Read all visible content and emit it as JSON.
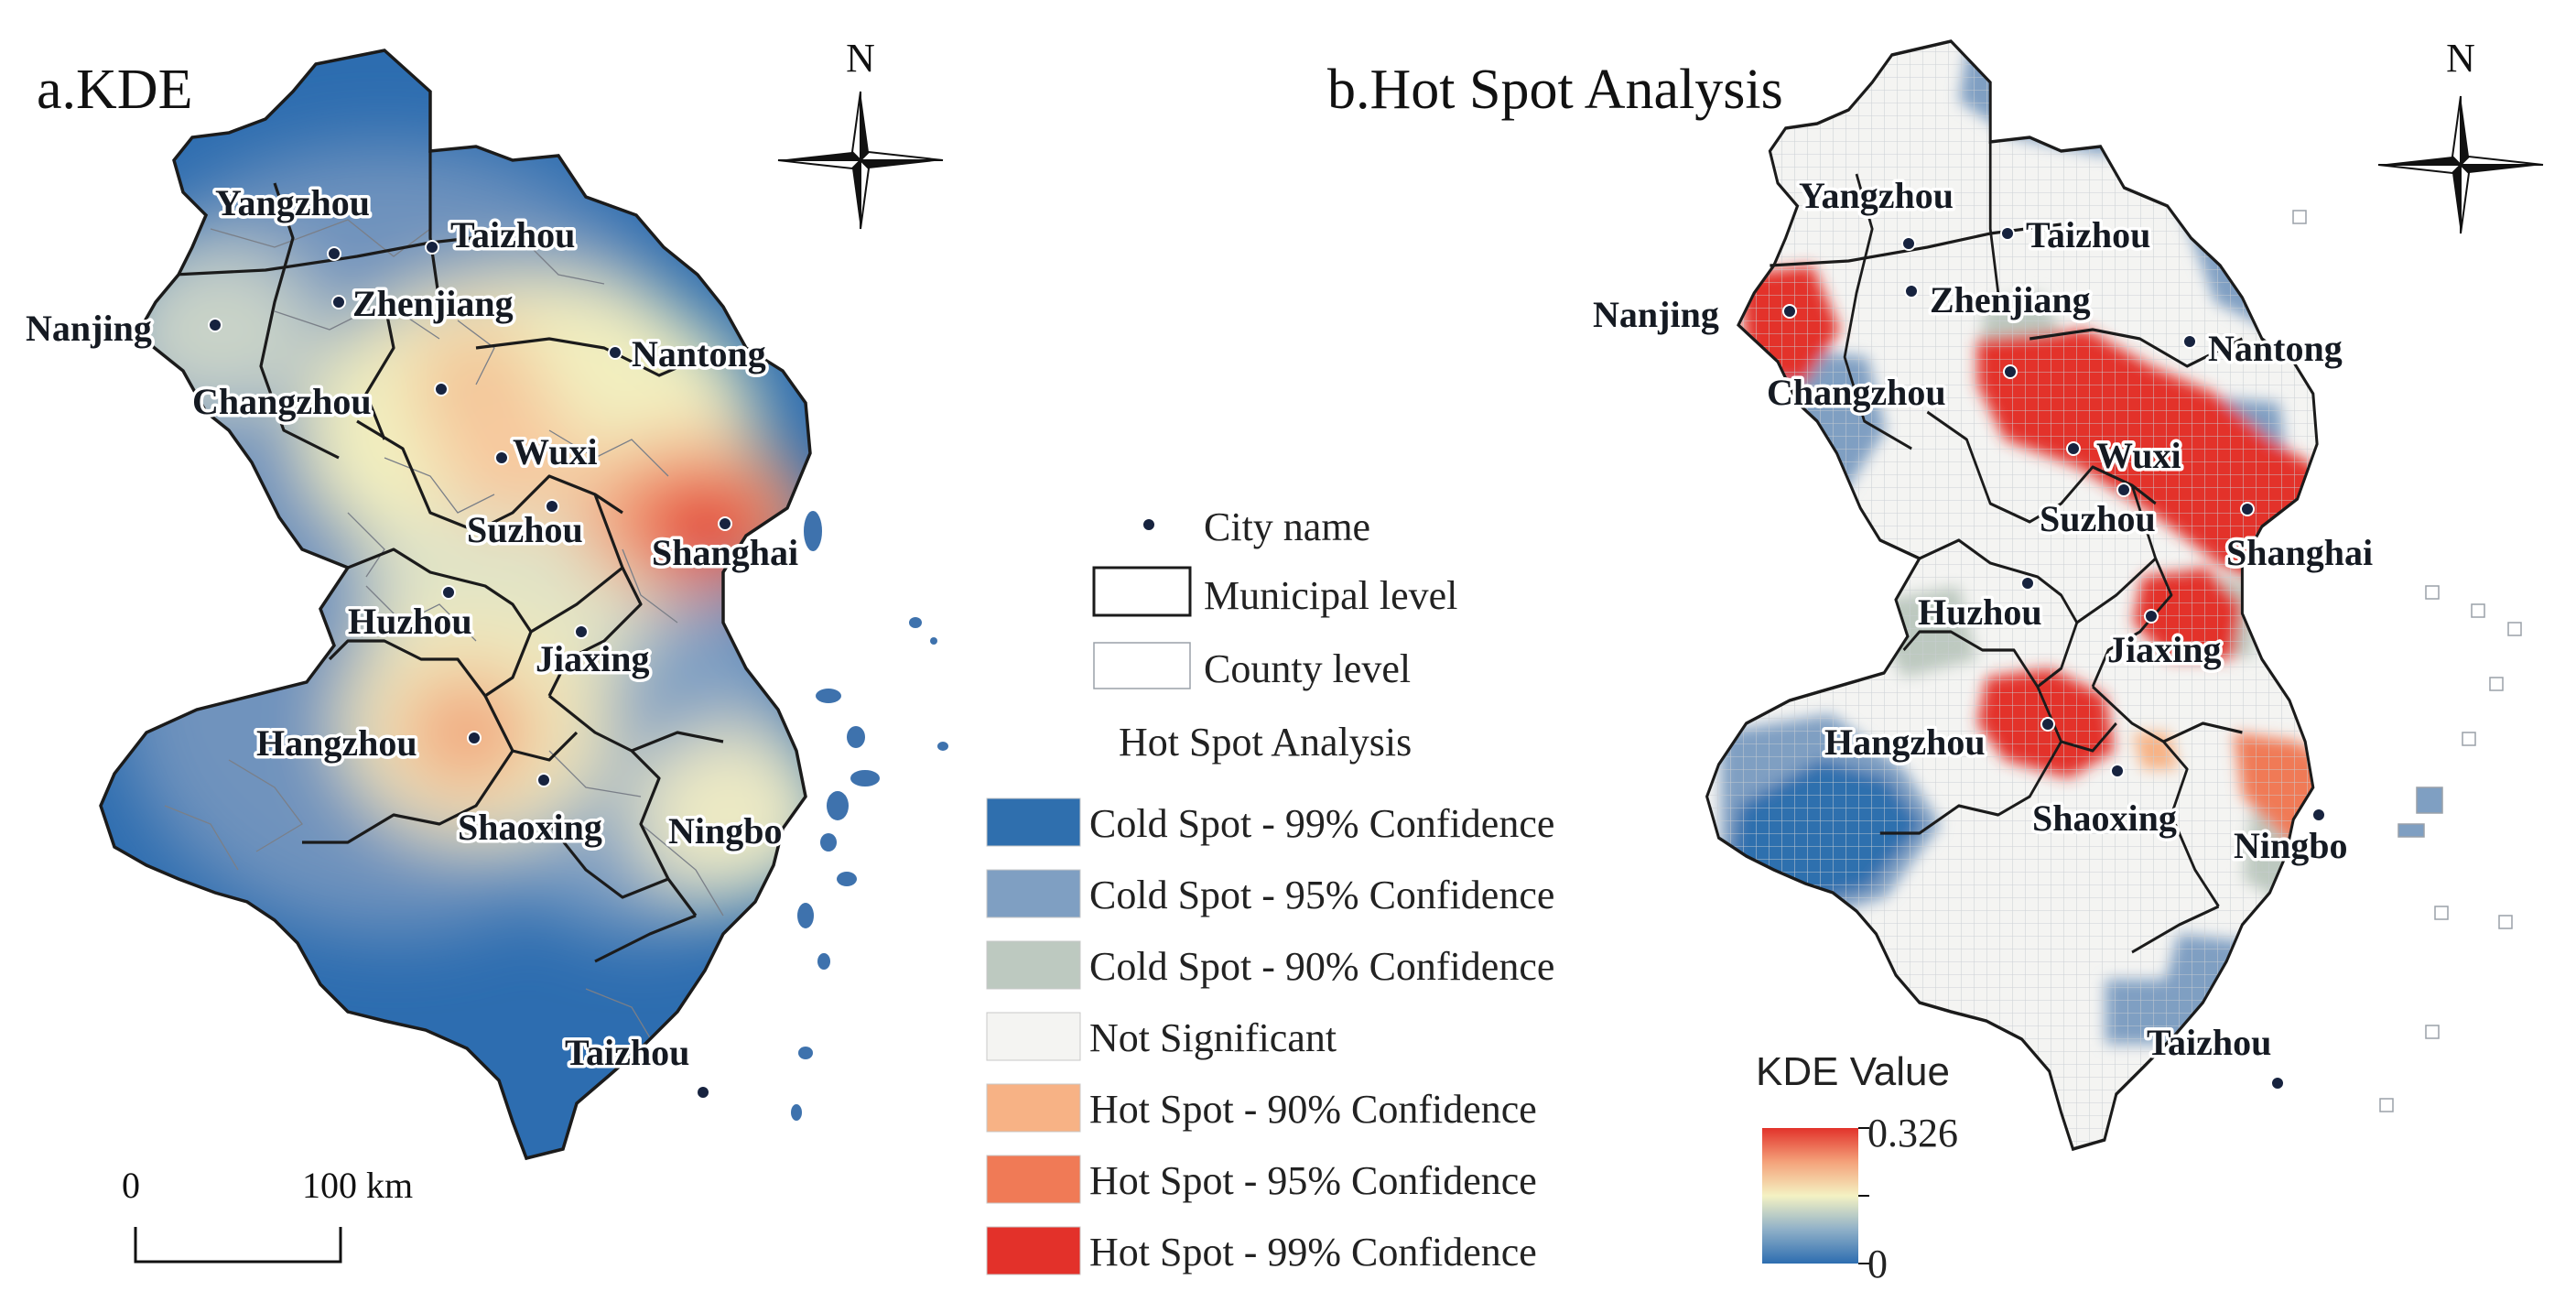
{
  "panels": {
    "kde": {
      "title": "a.KDE"
    },
    "hotspot": {
      "title": "b.Hot Spot Analysis"
    }
  },
  "north_label": "N",
  "cities_kde": [
    {
      "name": "Yangzhou"
    },
    {
      "name": "Taizhou"
    },
    {
      "name": "Nanjing"
    },
    {
      "name": "Zhenjiang"
    },
    {
      "name": "Nantong"
    },
    {
      "name": "Changzhou"
    },
    {
      "name": "Wuxi"
    },
    {
      "name": "Suzhou"
    },
    {
      "name": "Shanghai"
    },
    {
      "name": "Huzhou"
    },
    {
      "name": "Jiaxing"
    },
    {
      "name": "Hangzhou"
    },
    {
      "name": "Shaoxing"
    },
    {
      "name": "Ningbo"
    },
    {
      "name": "Taizhou"
    }
  ],
  "cities_hs": [
    {
      "name": "Yangzhou"
    },
    {
      "name": "Taizhou"
    },
    {
      "name": "Nanjing"
    },
    {
      "name": "Zhenjiang"
    },
    {
      "name": "Nantong"
    },
    {
      "name": "Changzhou"
    },
    {
      "name": "Wuxi"
    },
    {
      "name": "Suzhou"
    },
    {
      "name": "Shanghai"
    },
    {
      "name": "Huzhou"
    },
    {
      "name": "Jiaxing"
    },
    {
      "name": "Hangzhou"
    },
    {
      "name": "Shaoxing"
    },
    {
      "name": "Ningbo"
    },
    {
      "name": "Taizhou"
    }
  ],
  "legend": {
    "city_name": "City name",
    "municipal": "Municipal level",
    "county": "County level",
    "hotspot_heading": "Hot Spot Analysis",
    "classes": [
      {
        "label": "Cold Spot - 99% Confidence",
        "color": "#2f6fae"
      },
      {
        "label": "Cold Spot - 95% Confidence",
        "color": "#7f9fc2"
      },
      {
        "label": "Cold Spot - 90% Confidence",
        "color": "#bdc9c0"
      },
      {
        "label": "Not Significant",
        "color": "#f4f4f2"
      },
      {
        "label": "Hot Spot - 90% Confidence",
        "color": "#f7b285"
      },
      {
        "label": "Hot Spot - 95% Confidence",
        "color": "#f07a56"
      },
      {
        "label": "Hot Spot - 99% Confidence",
        "color": "#e3312a"
      }
    ]
  },
  "kde_legend": {
    "title": "KDE Value",
    "max": "0.326",
    "min": "0"
  },
  "scale_bar": {
    "start": "0",
    "end": "100 km"
  },
  "colors": {
    "kde_low": "#2d6db0",
    "kde_mid": "#f4f2c3",
    "kde_high": "#e2332b",
    "hs_cold99": "#2f6fae",
    "hs_hot99": "#e3312a"
  }
}
